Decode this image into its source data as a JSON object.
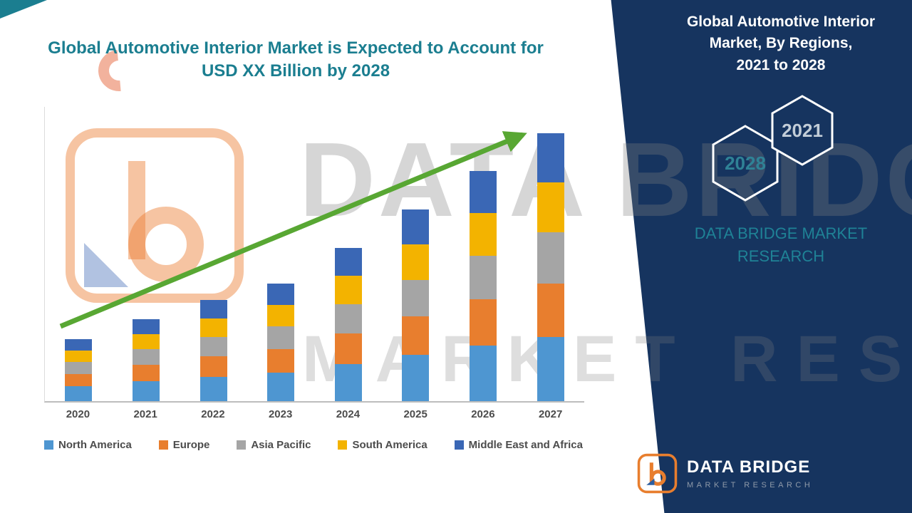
{
  "left_title": {
    "line1": "Global Automotive Interior Market is Expected to Account for",
    "line2": "USD XX Billion by 2028"
  },
  "panel": {
    "title_line1": "Global Automotive Interior",
    "title_line2": "Market, By Regions,",
    "title_line3": "2021 to 2028",
    "badge_2028": "2028",
    "badge_2021": "2021",
    "brand_line1": "DATA BRIDGE MARKET",
    "brand_line2": "RESEARCH",
    "logo_name": "DATA BRIDGE",
    "logo_sub": "MARKET RESEARCH"
  },
  "watermark": {
    "line1": "DATA BRIDGE",
    "line2": "MARKET RESEARCH"
  },
  "colors": {
    "teal_accent": "#1b7e90",
    "navy_panel": "#16345f",
    "arrow_green": "#58a733",
    "logo_orange": "#e87e2e"
  },
  "chart_data": {
    "type": "bar",
    "stacked": true,
    "title": "Global Automotive Interior Market is Expected to Account for USD XX Billion by 2028",
    "xlabel": "",
    "ylabel": "",
    "ylim": [
      0,
      42
    ],
    "grid": false,
    "legend_position": "bottom",
    "trend_arrow": true,
    "categories": [
      "2020",
      "2021",
      "2022",
      "2023",
      "2024",
      "2025",
      "2026",
      "2027"
    ],
    "series": [
      {
        "name": "North America",
        "color": "#4e96d1",
        "values": [
          2.1,
          2.8,
          3.5,
          4.1,
          5.3,
          6.6,
          7.9,
          9.2
        ]
      },
      {
        "name": "Europe",
        "color": "#e87e2e",
        "values": [
          1.7,
          2.3,
          2.9,
          3.4,
          4.4,
          5.5,
          6.6,
          7.6
        ]
      },
      {
        "name": "Asia Pacific",
        "color": "#a5a5a5",
        "values": [
          1.7,
          2.2,
          2.7,
          3.3,
          4.2,
          5.2,
          6.2,
          7.3
        ]
      },
      {
        "name": "South America",
        "color": "#f3b300",
        "values": [
          1.6,
          2.1,
          2.6,
          3.1,
          4.1,
          5.1,
          6.1,
          7.1
        ]
      },
      {
        "name": "Middle East and Africa",
        "color": "#3a67b5",
        "values": [
          1.6,
          2.1,
          2.6,
          3.1,
          4.0,
          5.0,
          6.0,
          7.0
        ]
      }
    ]
  }
}
